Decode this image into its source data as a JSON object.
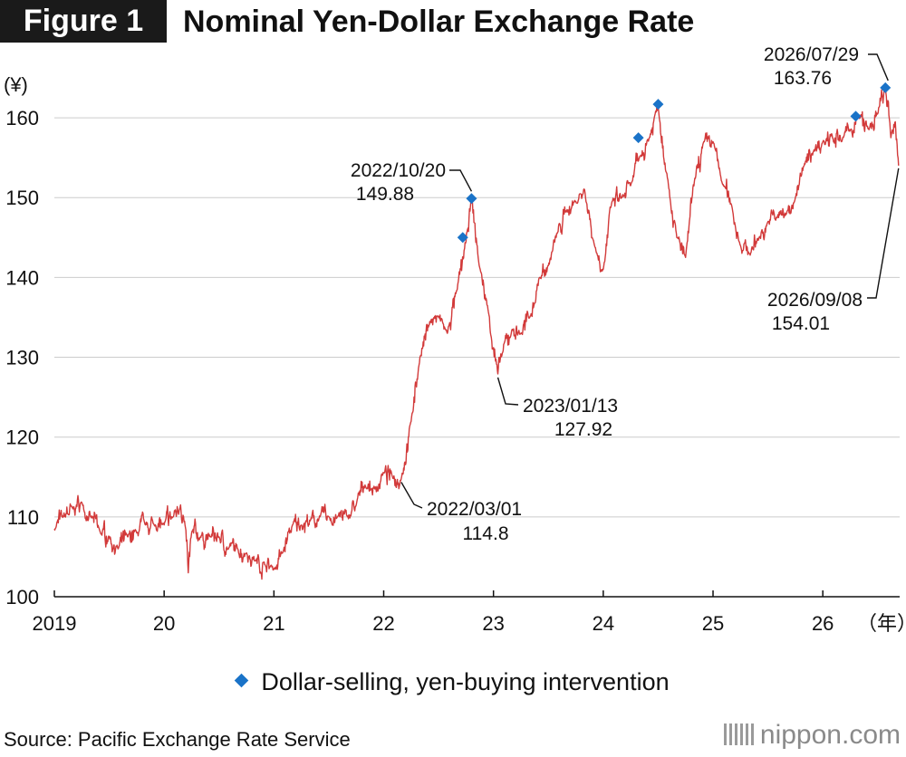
{
  "figure_label": "Figure 1",
  "title": "Nominal Yen-Dollar Exchange Rate",
  "source": "Source: Pacific Exchange Rate Service",
  "brand": "nippon.com",
  "colors": {
    "line": "#d23a3a",
    "marker": "#1a73c8",
    "grid": "#cccccc",
    "axis": "#111111"
  },
  "chart_data": {
    "type": "line",
    "title": "Nominal Yen-Dollar Exchange Rate",
    "y_unit_label": "(¥)",
    "x_unit_label": "（年）",
    "ylim": [
      100,
      165
    ],
    "y_ticks": [
      100,
      110,
      120,
      130,
      140,
      150,
      160
    ],
    "x_ticks": [
      {
        "label": "2019",
        "t": 2019.0
      },
      {
        "label": "20",
        "t": 2020.0
      },
      {
        "label": "21",
        "t": 2021.0
      },
      {
        "label": "22",
        "t": 2022.0
      },
      {
        "label": "23",
        "t": 2023.0
      },
      {
        "label": "24",
        "t": 2024.0
      },
      {
        "label": "25",
        "t": 2025.0
      },
      {
        "label": "26",
        "t": 2026.0
      }
    ],
    "xlim": [
      2019.0,
      2026.7
    ],
    "grid": "horizontal",
    "legend": [
      {
        "label": "Dollar-selling, yen-buying intervention",
        "marker": "diamond"
      }
    ],
    "series": [
      {
        "x": [
          2019.0,
          2019.08,
          2019.17,
          2019.25,
          2019.33,
          2019.42,
          2019.5,
          2019.58,
          2019.67,
          2019.75,
          2019.83,
          2019.92,
          2020.0,
          2020.08,
          2020.15,
          2020.19,
          2020.22,
          2020.25,
          2020.33,
          2020.42,
          2020.5,
          2020.58,
          2020.67,
          2020.75,
          2020.83,
          2020.92,
          2021.0,
          2021.08,
          2021.17,
          2021.25,
          2021.33,
          2021.42,
          2021.5,
          2021.58,
          2021.67,
          2021.75,
          2021.83,
          2021.92,
          2022.0,
          2022.08,
          2022.16,
          2022.25,
          2022.33,
          2022.42,
          2022.5,
          2022.58,
          2022.67,
          2022.75,
          2022.8,
          2022.87,
          2022.95,
          2023.04,
          2023.08,
          2023.17,
          2023.25,
          2023.33,
          2023.42,
          2023.5,
          2023.58,
          2023.67,
          2023.75,
          2023.83,
          2023.92,
          2024.0,
          2024.08,
          2024.17,
          2024.25,
          2024.33,
          2024.42,
          2024.5,
          2024.58,
          2024.67,
          2024.75,
          2024.83,
          2024.92,
          2025.0,
          2025.08,
          2025.17,
          2025.25,
          2025.33,
          2025.42,
          2025.5,
          2025.58,
          2025.67,
          2025.75,
          2025.83,
          2025.92,
          2026.0,
          2026.08,
          2026.17,
          2026.25,
          2026.33,
          2026.42,
          2026.5,
          2026.57,
          2026.62,
          2026.66,
          2026.69
        ],
        "y": [
          108.5,
          110.0,
          111.0,
          111.8,
          110.0,
          108.0,
          107.5,
          106.0,
          107.5,
          108.0,
          109.0,
          109.0,
          109.0,
          110.0,
          111.5,
          109.0,
          103.0,
          108.0,
          107.5,
          107.5,
          107.5,
          106.0,
          106.0,
          105.5,
          104.5,
          104.0,
          103.5,
          105.5,
          109.0,
          109.0,
          109.5,
          110.0,
          110.0,
          110.0,
          110.0,
          111.5,
          114.0,
          113.5,
          115.5,
          115.0,
          114.8,
          122.0,
          130.0,
          134.5,
          135.0,
          133.0,
          138.5,
          144.5,
          149.88,
          141.5,
          136.0,
          127.92,
          130.5,
          133.5,
          133.0,
          135.0,
          140.0,
          141.5,
          145.5,
          148.5,
          149.5,
          151.0,
          144.0,
          141.0,
          149.5,
          150.0,
          151.5,
          155.0,
          157.5,
          161.5,
          153.0,
          145.0,
          142.5,
          152.0,
          157.0,
          157.0,
          152.0,
          149.0,
          144.0,
          143.0,
          145.0,
          147.0,
          147.5,
          148.0,
          150.0,
          154.0,
          156.0,
          157.0,
          158.0,
          157.0,
          158.5,
          160.0,
          158.5,
          160.5,
          163.76,
          157.5,
          159.5,
          154.01
        ]
      }
    ],
    "interventions": [
      {
        "t": 2022.72,
        "y": 145.0
      },
      {
        "t": 2022.8,
        "y": 149.88
      },
      {
        "t": 2024.32,
        "y": 157.5
      },
      {
        "t": 2024.5,
        "y": 161.7
      },
      {
        "t": 2026.3,
        "y": 160.2
      },
      {
        "t": 2026.57,
        "y": 163.76
      }
    ],
    "annotations": [
      {
        "date": "2022/03/01",
        "value": "114.8"
      },
      {
        "date": "2022/10/20",
        "value": "149.88"
      },
      {
        "date": "2023/01/13",
        "value": "127.92"
      },
      {
        "date": "2026/07/29",
        "value": "163.76"
      },
      {
        "date": "2026/09/08",
        "value": "154.01"
      }
    ]
  }
}
